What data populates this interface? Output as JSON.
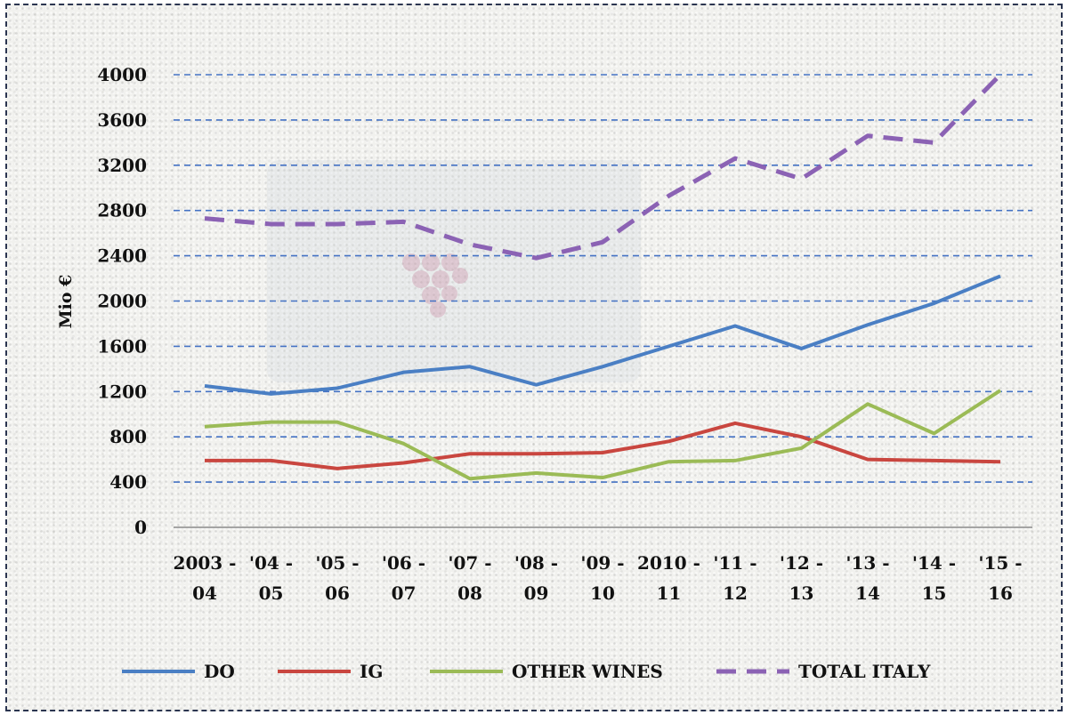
{
  "chart_data": {
    "type": "line",
    "ylabel": "Mio €",
    "ylim": [
      0,
      4000
    ],
    "yticks": [
      "0",
      "400",
      "800",
      "1200",
      "1600",
      "2000",
      "2400",
      "2800",
      "3200",
      "3600",
      "4000"
    ],
    "categories": [
      [
        "2003 -",
        "04"
      ],
      [
        "'04 -",
        "05"
      ],
      [
        "'05 -",
        "06"
      ],
      [
        "'06 -",
        "07"
      ],
      [
        "'07 -",
        "08"
      ],
      [
        "'08 -",
        "09"
      ],
      [
        "'09 -",
        "10"
      ],
      [
        "2010 -",
        "11"
      ],
      [
        "'11 -",
        "12"
      ],
      [
        "'12 -",
        "13"
      ],
      [
        "'13 -",
        "14"
      ],
      [
        "'14 -",
        "15"
      ],
      [
        "'15 -",
        "16"
      ]
    ],
    "grid": true,
    "legend_position": "bottom",
    "series": [
      {
        "name": "DO",
        "color": "#4a7fc4",
        "dashed": false,
        "values": [
          1250,
          1180,
          1230,
          1370,
          1420,
          1260,
          1420,
          1600,
          1780,
          1580,
          1790,
          1980,
          2220
        ]
      },
      {
        "name": "IG",
        "color": "#c9463f",
        "dashed": false,
        "values": [
          590,
          590,
          520,
          570,
          650,
          650,
          660,
          760,
          920,
          800,
          600,
          590,
          580
        ]
      },
      {
        "name": "OTHER WINES",
        "color": "#9bbb56",
        "dashed": false,
        "values": [
          890,
          930,
          930,
          740,
          430,
          480,
          440,
          580,
          590,
          700,
          1090,
          830,
          1210
        ]
      },
      {
        "name": "TOTAL ITALY",
        "color": "#8b62b4",
        "dashed": true,
        "values": [
          2730,
          2680,
          2680,
          2700,
          2500,
          2380,
          2520,
          2930,
          3260,
          3080,
          3460,
          3400,
          4000
        ]
      }
    ]
  }
}
